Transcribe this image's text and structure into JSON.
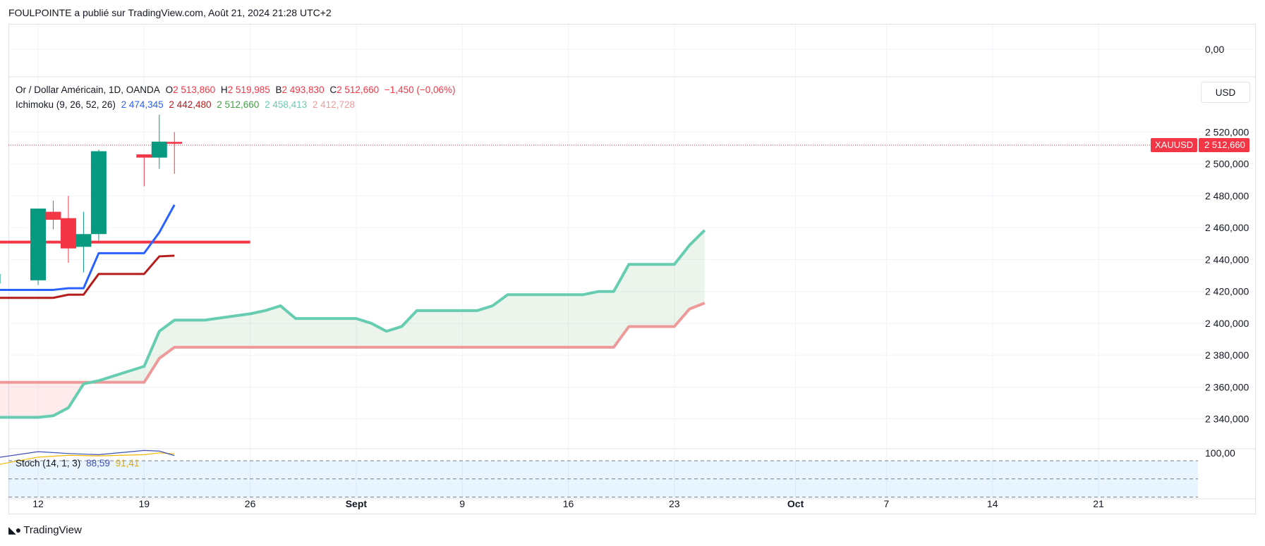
{
  "header": {
    "publish_text": "FOULPOINTE a publié sur TradingView.com, Août 21, 2024 21:28 UTC+2"
  },
  "legend": {
    "symbol": "Or / Dollar Américain, 1D, OANDA",
    "o_label": "O",
    "o_value": "2 513,860",
    "h_label": "H",
    "h_value": "2 519,985",
    "b_label": "B",
    "b_value": "2 493,830",
    "c_label": "C",
    "c_value": "2 512,660",
    "change": "−1,450 (−0,06%)",
    "ichimoku_label": "Ichimoku (9, 26, 52, 26)",
    "ichimoku_values": [
      "2 474,345",
      "2 442,480",
      "2 512,660",
      "2 458,413",
      "2 412,728"
    ]
  },
  "stoch": {
    "label": "Stoch (14, 1, 3)",
    "k_value": "88,59",
    "d_value": "91,41"
  },
  "currency_button": "USD",
  "price_tag": {
    "symbol": "XAUUSD",
    "value": "2 512,660"
  },
  "top_pane": {
    "scale_label": "0,00"
  },
  "stoch_pane": {
    "scale_label": "100,00"
  },
  "y_axis": {
    "labels": [
      "2 520,000",
      "2 500,000",
      "2 480,000",
      "2 460,000",
      "2 440,000",
      "2 420,000",
      "2 400,000",
      "2 380,000",
      "2 360,000",
      "2 340,000"
    ]
  },
  "x_axis": {
    "labels": [
      "12",
      "19",
      "26",
      "Sept",
      "9",
      "16",
      "23",
      "Oct",
      "7",
      "14",
      "21"
    ]
  },
  "logo_text": "TradingView",
  "colors": {
    "up": "#089981",
    "down": "#f23645",
    "tenkan": "#2962ff",
    "kijun": "#b71c1c",
    "span_a": "#66cdb1",
    "span_b": "#ef9a9a",
    "stoch_k": "#3f51b5",
    "stoch_d": "#f5b800"
  },
  "chart_data": {
    "type": "candlestick",
    "title": "Or / Dollar Américain, 1D, OANDA",
    "ylim": [
      2330,
      2530
    ],
    "candles": [
      {
        "date": "2024-08-09",
        "o": 2425,
        "h": 2437,
        "l": 2415,
        "c": 2431
      },
      {
        "date": "2024-08-12",
        "o": 2427,
        "h": 2472,
        "l": 2424,
        "c": 2472
      },
      {
        "date": "2024-08-13",
        "o": 2470,
        "h": 2477,
        "l": 2459,
        "c": 2465
      },
      {
        "date": "2024-08-14",
        "o": 2466,
        "h": 2480,
        "l": 2438,
        "c": 2447
      },
      {
        "date": "2024-08-15",
        "o": 2448,
        "h": 2470,
        "l": 2432,
        "c": 2456
      },
      {
        "date": "2024-08-16",
        "o": 2456,
        "h": 2509,
        "l": 2452,
        "c": 2508
      },
      {
        "date": "2024-08-19",
        "o": 2506,
        "h": 2506,
        "l": 2486,
        "c": 2504
      },
      {
        "date": "2024-08-20",
        "o": 2504,
        "h": 2531,
        "l": 2497,
        "c": 2514
      },
      {
        "date": "2024-08-21",
        "o": 2513.86,
        "h": 2519.985,
        "l": 2493.83,
        "c": 2512.66
      }
    ],
    "tenkan": [
      {
        "date": "2024-08-09",
        "v": 2421
      },
      {
        "date": "2024-08-12",
        "v": 2421
      },
      {
        "date": "2024-08-13",
        "v": 2421
      },
      {
        "date": "2024-08-14",
        "v": 2422
      },
      {
        "date": "2024-08-15",
        "v": 2422
      },
      {
        "date": "2024-08-16",
        "v": 2444
      },
      {
        "date": "2024-08-19",
        "v": 2444
      },
      {
        "date": "2024-08-20",
        "v": 2457
      },
      {
        "date": "2024-08-21",
        "v": 2474.345
      }
    ],
    "kijun": [
      {
        "date": "2024-08-09",
        "v": 2416
      },
      {
        "date": "2024-08-12",
        "v": 2416
      },
      {
        "date": "2024-08-13",
        "v": 2416
      },
      {
        "date": "2024-08-14",
        "v": 2418
      },
      {
        "date": "2024-08-15",
        "v": 2418
      },
      {
        "date": "2024-08-16",
        "v": 2431
      },
      {
        "date": "2024-08-19",
        "v": 2431
      },
      {
        "date": "2024-08-20",
        "v": 2442
      },
      {
        "date": "2024-08-21",
        "v": 2442.48
      }
    ],
    "chikou": {
      "from": "2024-08-09",
      "to": "2024-08-26",
      "v": 2451
    },
    "span_a": [
      {
        "date": "2024-08-08",
        "v": 2336
      },
      {
        "date": "2024-08-09",
        "v": 2341
      },
      {
        "date": "2024-08-12",
        "v": 2341
      },
      {
        "date": "2024-08-13",
        "v": 2342
      },
      {
        "date": "2024-08-14",
        "v": 2347
      },
      {
        "date": "2024-08-15",
        "v": 2362
      },
      {
        "date": "2024-08-16",
        "v": 2364
      },
      {
        "date": "2024-08-19",
        "v": 2373
      },
      {
        "date": "2024-08-20",
        "v": 2395
      },
      {
        "date": "2024-08-21",
        "v": 2402
      },
      {
        "date": "2024-08-22",
        "v": 2402
      },
      {
        "date": "2024-08-23",
        "v": 2402
      },
      {
        "date": "2024-08-26",
        "v": 2406
      },
      {
        "date": "2024-08-27",
        "v": 2408
      },
      {
        "date": "2024-08-28",
        "v": 2411
      },
      {
        "date": "2024-08-29",
        "v": 2403
      },
      {
        "date": "2024-08-30",
        "v": 2403
      },
      {
        "date": "2024-09-02",
        "v": 2403
      },
      {
        "date": "2024-09-03",
        "v": 2400
      },
      {
        "date": "2024-09-04",
        "v": 2395
      },
      {
        "date": "2024-09-05",
        "v": 2398
      },
      {
        "date": "2024-09-06",
        "v": 2408
      },
      {
        "date": "2024-09-09",
        "v": 2408
      },
      {
        "date": "2024-09-10",
        "v": 2408
      },
      {
        "date": "2024-09-11",
        "v": 2411
      },
      {
        "date": "2024-09-12",
        "v": 2418
      },
      {
        "date": "2024-09-13",
        "v": 2418
      },
      {
        "date": "2024-09-16",
        "v": 2418
      },
      {
        "date": "2024-09-17",
        "v": 2418
      },
      {
        "date": "2024-09-18",
        "v": 2420
      },
      {
        "date": "2024-09-19",
        "v": 2420
      },
      {
        "date": "2024-09-20",
        "v": 2437
      },
      {
        "date": "2024-09-23",
        "v": 2437
      },
      {
        "date": "2024-09-24",
        "v": 2449
      },
      {
        "date": "2024-09-25",
        "v": 2458.413
      }
    ],
    "span_b": [
      {
        "date": "2024-08-08",
        "v": 2363
      },
      {
        "date": "2024-08-19",
        "v": 2363
      },
      {
        "date": "2024-08-20",
        "v": 2378
      },
      {
        "date": "2024-08-21",
        "v": 2385
      },
      {
        "date": "2024-09-19",
        "v": 2385
      },
      {
        "date": "2024-09-20",
        "v": 2398
      },
      {
        "date": "2024-09-23",
        "v": 2398
      },
      {
        "date": "2024-09-24",
        "v": 2409
      },
      {
        "date": "2024-09-25",
        "v": 2412.728
      }
    ],
    "stoch": {
      "ylim": [
        0,
        100
      ],
      "k": [
        {
          "date": "2024-08-09",
          "v": 84
        },
        {
          "date": "2024-08-12",
          "v": 95
        },
        {
          "date": "2024-08-14",
          "v": 92
        },
        {
          "date": "2024-08-16",
          "v": 90
        },
        {
          "date": "2024-08-19",
          "v": 97
        },
        {
          "date": "2024-08-20",
          "v": 96
        },
        {
          "date": "2024-08-21",
          "v": 88.59
        }
      ],
      "d": [
        {
          "date": "2024-08-09",
          "v": 72
        },
        {
          "date": "2024-08-12",
          "v": 86
        },
        {
          "date": "2024-08-14",
          "v": 89
        },
        {
          "date": "2024-08-16",
          "v": 88
        },
        {
          "date": "2024-08-19",
          "v": 90
        },
        {
          "date": "2024-08-20",
          "v": 93
        },
        {
          "date": "2024-08-21",
          "v": 91.41
        }
      ],
      "bands": [
        80,
        50,
        20
      ]
    }
  }
}
